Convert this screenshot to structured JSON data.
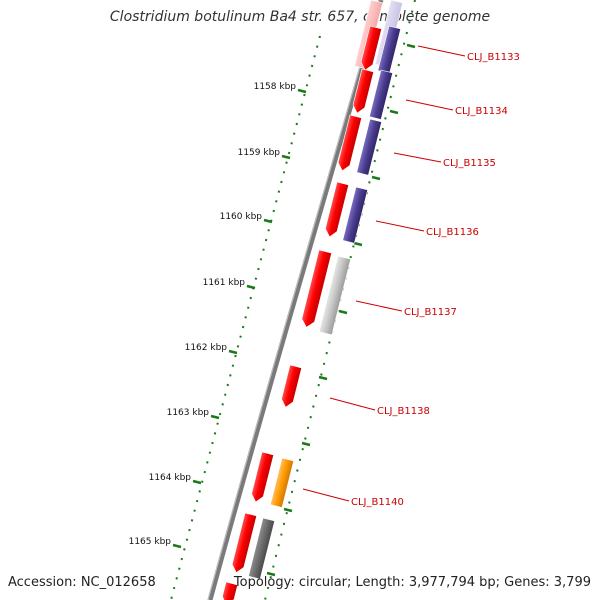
{
  "title": "Clostridium botulinum Ba4 str. 657, complete genome",
  "footer": {
    "accession": "Accession: NC_012658",
    "summary": "Topology: circular; Length: 3,977,794 bp; Genes: 3,799"
  },
  "colors": {
    "backbone": "#7a7a7a",
    "cds": "#ff0000",
    "blast_hit": "#4b3d8f",
    "grey_feature": "#bdbdbd",
    "dark_grey_feature": "#6e6e6e",
    "orange_feature": "#ff9900",
    "tick": "#1a7a1a",
    "label": "#cc0000"
  },
  "ruler": {
    "unit": "kbp",
    "ticks": [
      {
        "label": "1158 kbp",
        "value": 1158
      },
      {
        "label": "1159 kbp",
        "value": 1159
      },
      {
        "label": "1160 kbp",
        "value": 1160
      },
      {
        "label": "1161 kbp",
        "value": 1161
      },
      {
        "label": "1162 kbp",
        "value": 1162
      },
      {
        "label": "1163 kbp",
        "value": 1163
      },
      {
        "label": "1164 kbp",
        "value": 1164
      },
      {
        "label": "1165 kbp",
        "value": 1165
      }
    ]
  },
  "gene_labels": [
    "CLJ_B1133",
    "CLJ_B1134",
    "CLJ_B1135",
    "CLJ_B1136",
    "CLJ_B1137",
    "CLJ_B1138",
    "CLJ_B1140"
  ]
}
